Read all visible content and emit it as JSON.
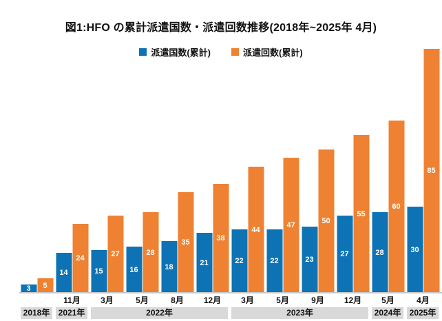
{
  "title": "図1:HFO の累計派遣国数・派遣回数推移(2018年~2025年 4月)",
  "legend": {
    "items": [
      {
        "label": "派遣国数(累計)",
        "color": "#0E73B5"
      },
      {
        "label": "派遣回数(累計)",
        "color": "#EF8232"
      }
    ]
  },
  "chart_data": {
    "type": "bar",
    "title": "図1:HFO の累計派遣国数・派遣回数推移(2018年~2025年 4月)",
    "categories": [
      "",
      "11月",
      "3月",
      "5月",
      "8月",
      "12月",
      "3月",
      "5月",
      "9月",
      "12月",
      "5月",
      "4月"
    ],
    "year_groups": [
      {
        "label": "2018年",
        "span": 1
      },
      {
        "label": "2021年",
        "span": 1
      },
      {
        "label": "2022年",
        "span": 4
      },
      {
        "label": "2023年",
        "span": 4
      },
      {
        "label": "2024年",
        "span": 1
      },
      {
        "label": "2025年",
        "span": 1
      }
    ],
    "series": [
      {
        "name": "派遣国数(累計)",
        "color": "#0E73B5",
        "values": [
          3,
          14,
          15,
          16,
          18,
          21,
          22,
          22,
          23,
          27,
          28,
          30
        ]
      },
      {
        "name": "派遣回数(累計)",
        "color": "#EF8232",
        "values": [
          5,
          24,
          27,
          28,
          35,
          38,
          44,
          47,
          50,
          55,
          60,
          85
        ]
      }
    ],
    "ylim": [
      0,
      85
    ],
    "grid": false,
    "legend_position": "top",
    "value_labels": "inside-bars-white-bold"
  },
  "colors": {
    "axis_line": "#C6C6C6",
    "year_badge_bg": "#D9D9D9"
  }
}
